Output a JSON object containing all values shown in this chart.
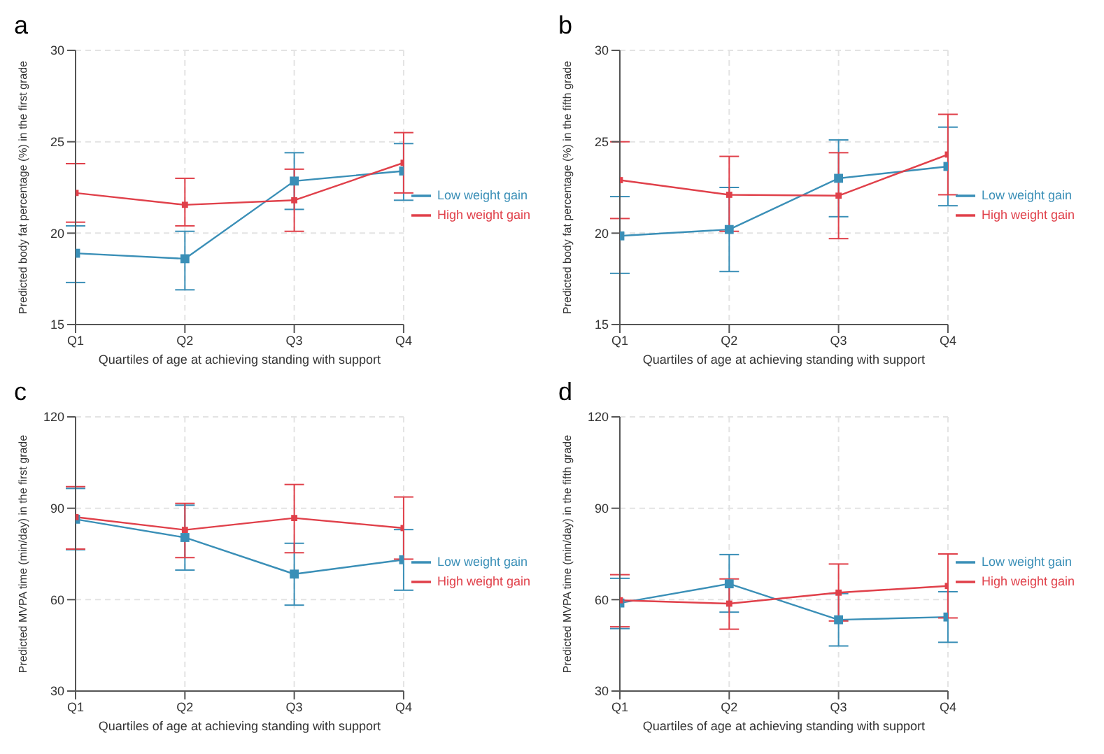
{
  "chart_data": [
    {
      "type": "line",
      "title": "a",
      "xlabel": "Quartiles of age at achieving standing with support",
      "ylabel": "Predicted body fat percentage (%) in the first grade",
      "categories": [
        "Q1",
        "Q2",
        "Q3",
        "Q4"
      ],
      "ylim": [
        15,
        30
      ],
      "yticks": [
        15,
        20,
        25,
        30
      ],
      "grid": true,
      "legend": "right",
      "marker": "square",
      "series": [
        {
          "name": "Low weight gain",
          "color": "#3a8fb7",
          "values": [
            18.9,
            18.6,
            22.85,
            23.4
          ],
          "errors": [
            [
              17.3,
              20.4
            ],
            [
              16.9,
              20.1
            ],
            [
              21.3,
              24.4
            ],
            [
              21.8,
              24.9
            ]
          ]
        },
        {
          "name": "High weight gain",
          "color": "#e0404a",
          "values": [
            22.2,
            21.55,
            21.8,
            23.85
          ],
          "errors": [
            [
              20.6,
              23.8
            ],
            [
              20.4,
              23.0
            ],
            [
              20.1,
              23.5
            ],
            [
              22.2,
              25.5
            ]
          ]
        }
      ]
    },
    {
      "type": "line",
      "title": "b",
      "xlabel": "Quartiles of age at achieving standing with support",
      "ylabel": "Predicted body fat percentage (%) in the fifth grade",
      "categories": [
        "Q1",
        "Q2",
        "Q3",
        "Q4"
      ],
      "ylim": [
        15,
        30
      ],
      "yticks": [
        15,
        20,
        25,
        30
      ],
      "grid": true,
      "legend": "right",
      "marker": "square",
      "series": [
        {
          "name": "Low weight gain",
          "color": "#3a8fb7",
          "values": [
            19.85,
            20.2,
            23.0,
            23.65
          ],
          "errors": [
            [
              17.8,
              22.0
            ],
            [
              17.9,
              22.5
            ],
            [
              20.9,
              25.1
            ],
            [
              21.5,
              25.8
            ]
          ]
        },
        {
          "name": "High weight gain",
          "color": "#e0404a",
          "values": [
            22.9,
            22.1,
            22.05,
            24.3
          ],
          "errors": [
            [
              20.8,
              25.0
            ],
            [
              20.1,
              24.2
            ],
            [
              19.7,
              24.4
            ],
            [
              22.1,
              26.5
            ]
          ]
        }
      ]
    },
    {
      "type": "line",
      "title": "c",
      "xlabel": "Quartiles of age at achieving standing with support",
      "ylabel": "Predicted MVPA time (min/day) in the first grade",
      "categories": [
        "Q1",
        "Q2",
        "Q3",
        "Q4"
      ],
      "ylim": [
        30,
        120
      ],
      "yticks": [
        30,
        60,
        90,
        120
      ],
      "grid": true,
      "legend": "right",
      "marker": "square",
      "series": [
        {
          "name": "Low weight gain",
          "color": "#3a8fb7",
          "values": [
            86.4,
            80.4,
            68.4,
            73.1
          ],
          "errors": [
            [
              76.4,
              96.5
            ],
            [
              69.7,
              91.0
            ],
            [
              58.2,
              78.5
            ],
            [
              63.1,
              83.0
            ]
          ]
        },
        {
          "name": "High weight gain",
          "color": "#e0404a",
          "values": [
            87.1,
            82.9,
            86.8,
            83.5
          ],
          "errors": [
            [
              76.6,
              97.1
            ],
            [
              73.8,
              91.6
            ],
            [
              75.4,
              97.8
            ],
            [
              73.3,
              93.7
            ]
          ]
        }
      ]
    },
    {
      "type": "line",
      "title": "d",
      "xlabel": "Quartiles of age at achieving standing with support",
      "ylabel": "Predicted MVPA time (min/day) in the fifth grade",
      "categories": [
        "Q1",
        "Q2",
        "Q3",
        "Q4"
      ],
      "ylim": [
        30,
        120
      ],
      "yticks": [
        30,
        60,
        90,
        120
      ],
      "grid": true,
      "legend": "right",
      "marker": "square",
      "series": [
        {
          "name": "Low weight gain",
          "color": "#3a8fb7",
          "values": [
            58.9,
            65.2,
            53.4,
            54.3
          ],
          "errors": [
            [
              50.5,
              67.0
            ],
            [
              55.9,
              74.8
            ],
            [
              44.8,
              62.0
            ],
            [
              46.0,
              62.6
            ]
          ]
        },
        {
          "name": "High weight gain",
          "color": "#e0404a",
          "values": [
            59.8,
            58.7,
            62.3,
            64.5
          ],
          "errors": [
            [
              51.1,
              68.2
            ],
            [
              50.3,
              66.8
            ],
            [
              53.0,
              71.7
            ],
            [
              54.0,
              75.0
            ]
          ]
        }
      ]
    }
  ]
}
